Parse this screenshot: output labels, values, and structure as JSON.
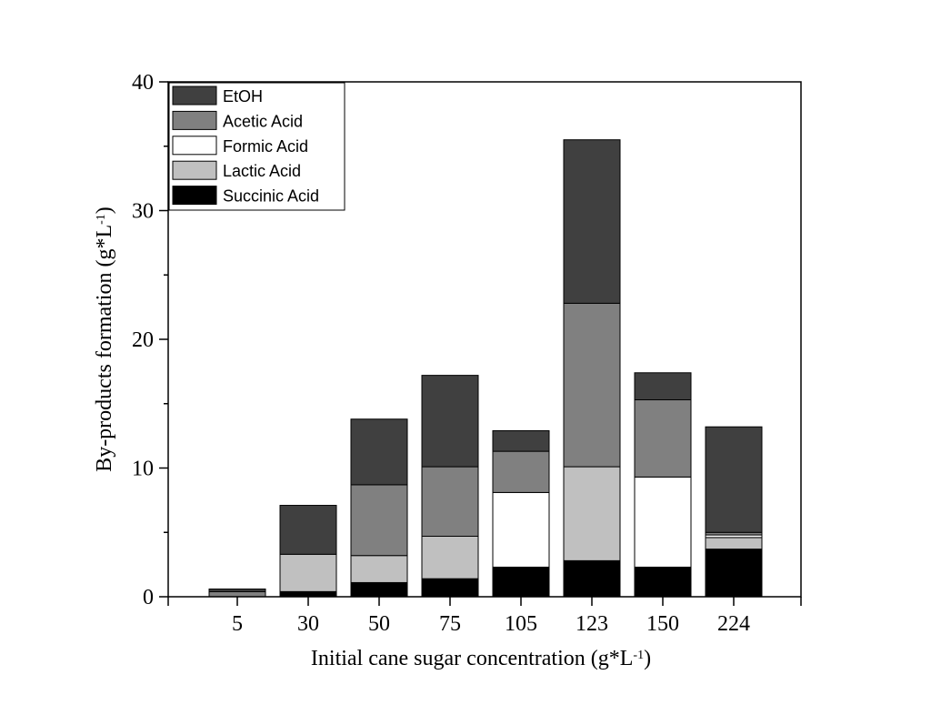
{
  "chart_data": {
    "type": "bar",
    "stacked": true,
    "categories": [
      "5",
      "30",
      "50",
      "75",
      "105",
      "123",
      "150",
      "224"
    ],
    "series": [
      {
        "name": "Succinic Acid",
        "color": "#000000",
        "values": [
          0.0,
          0.4,
          1.1,
          1.4,
          2.3,
          2.8,
          2.3,
          3.7
        ]
      },
      {
        "name": "Lactic Acid",
        "color": "#c0c0c0",
        "values": [
          0.0,
          2.9,
          2.1,
          3.3,
          0.0,
          7.3,
          0.0,
          0.9
        ]
      },
      {
        "name": "Formic Acid",
        "color": "#ffffff",
        "values": [
          0.0,
          0.0,
          0.0,
          0.0,
          5.8,
          0.0,
          7.0,
          0.2
        ]
      },
      {
        "name": "Acetic Acid",
        "color": "#808080",
        "values": [
          0.4,
          0.0,
          5.5,
          5.4,
          3.2,
          12.7,
          6.0,
          0.2
        ]
      },
      {
        "name": "EtOH",
        "color": "#404040",
        "values": [
          0.2,
          3.8,
          5.1,
          7.1,
          1.6,
          12.7,
          2.1,
          8.2
        ]
      }
    ],
    "legend_order": [
      "EtOH",
      "Acetic Acid",
      "Formic Acid",
      "Lactic Acid",
      "Succinic Acid"
    ],
    "xlabel_main": "Initial cane sugar concentration (g*L",
    "xlabel_sup": "-1",
    "xlabel_close": ")",
    "ylabel_main": "By-products formation (g*L",
    "ylabel_sup": "-1",
    "ylabel_close": ")",
    "ylim": [
      0,
      40
    ],
    "yticks": [
      0,
      10,
      20,
      30,
      40
    ],
    "grid": false,
    "legend_position": "top-left"
  }
}
